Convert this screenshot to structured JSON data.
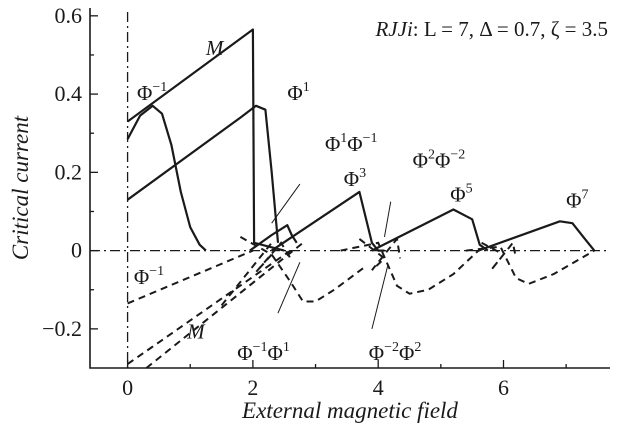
{
  "chart_data": {
    "type": "line",
    "title": {
      "prefix": "RJJi",
      "params": ": L = 7, Δ = 0.7, ζ = 3.5"
    },
    "xlabel": "External magnetic field",
    "ylabel": "Critical current",
    "xlim": [
      -0.6,
      7.7
    ],
    "ylim": [
      -0.3,
      0.62
    ],
    "xticks": [
      0,
      2,
      4,
      6
    ],
    "yticks": [
      -0.2,
      0,
      0.2,
      0.4,
      0.6
    ],
    "xtick_labels": [
      "0",
      "2",
      "4",
      "6"
    ],
    "ytick_labels": [
      "−0.2",
      "0",
      "0.2",
      "0.4",
      "0.6"
    ],
    "grid": false,
    "reference_lines": {
      "y": 0,
      "x": 0
    },
    "series": [
      {
        "style": "solid",
        "x": [
          0,
          2.0,
          2.02,
          2.5
        ],
        "y": [
          0.33,
          0.565,
          0.02,
          0.0
        ]
      },
      {
        "style": "solid",
        "x": [
          0,
          0.2,
          0.4,
          0.55,
          0.7,
          0.85,
          1.0,
          1.15,
          1.25
        ],
        "y": [
          0.285,
          0.345,
          0.37,
          0.35,
          0.27,
          0.15,
          0.06,
          0.015,
          0.0
        ]
      },
      {
        "style": "solid",
        "x": [
          0,
          1.8,
          2.05,
          2.2,
          2.3,
          2.4
        ],
        "y": [
          0.13,
          0.34,
          0.37,
          0.36,
          0.2,
          0.02
        ]
      },
      {
        "style": "solid",
        "x": [
          1.95,
          2.3,
          2.55,
          2.62,
          2.7
        ],
        "y": [
          0.0,
          0.04,
          0.065,
          0.04,
          0.02
        ]
      },
      {
        "style": "solid",
        "x": [
          2.3,
          3.7,
          3.9,
          4.0,
          4.1
        ],
        "y": [
          0.0,
          0.15,
          0.02,
          0.0,
          0.0
        ]
      },
      {
        "style": "solid",
        "x": [
          3.9,
          5.2,
          5.5,
          5.62,
          5.75
        ],
        "y": [
          0.0,
          0.105,
          0.08,
          0.015,
          0.0
        ]
      },
      {
        "style": "solid",
        "x": [
          5.6,
          6.9,
          7.1,
          7.3,
          7.45
        ],
        "y": [
          0.0,
          0.075,
          0.07,
          0.03,
          0.0
        ]
      },
      {
        "style": "dashed",
        "x": [
          0,
          2.0
        ],
        "y": [
          -0.135,
          0.0
        ]
      },
      {
        "style": "dashed",
        "x": [
          1.5,
          2.3
        ],
        "y": [
          -0.14,
          0.02
        ]
      },
      {
        "style": "dashed",
        "x": [
          0,
          2.6
        ],
        "y": [
          -0.29,
          0.0
        ]
      },
      {
        "style": "dashed",
        "x": [
          0.3,
          2.8
        ],
        "y": [
          -0.3,
          0.02
        ]
      },
      {
        "style": "dashed",
        "x": [
          2.3,
          2.6,
          2.8,
          3.0,
          3.3,
          3.8
        ],
        "y": [
          -0.01,
          -0.08,
          -0.13,
          -0.13,
          -0.1,
          -0.04
        ]
      },
      {
        "style": "dashed",
        "x": [
          3.4,
          4.0,
          4.3,
          4.5,
          4.8,
          5.2,
          5.6
        ],
        "y": [
          0.0,
          0.02,
          -0.09,
          -0.11,
          -0.1,
          -0.06,
          0.0
        ]
      },
      {
        "style": "dashed",
        "x": [
          5.4,
          5.95,
          6.2,
          6.4,
          6.8,
          7.45
        ],
        "y": [
          0.0,
          0.01,
          -0.07,
          -0.085,
          -0.06,
          0.0
        ]
      },
      {
        "style": "dashed",
        "x": [
          1.8,
          2.3,
          2.05,
          2.45,
          2.6
        ],
        "y": [
          0.035,
          -0.01,
          -0.055,
          0.02,
          -0.02
        ]
      },
      {
        "style": "dashed",
        "x": [
          3.7,
          4.1,
          3.9,
          4.3,
          4.35
        ],
        "y": [
          0.03,
          -0.02,
          -0.05,
          0.03,
          -0.02
        ]
      },
      {
        "style": "dashed",
        "x": [
          5.65,
          6.0,
          5.8,
          6.15,
          6.2
        ],
        "y": [
          0.02,
          -0.01,
          -0.05,
          0.02,
          -0.02
        ]
      }
    ],
    "annotations": [
      {
        "base": "M",
        "sup": "",
        "x": 1.25,
        "y": 0.5,
        "italic": true
      },
      {
        "base": "Φ",
        "sup": "−1",
        "x": 0.15,
        "y": 0.385,
        "italic": false
      },
      {
        "base": "Φ",
        "sup": "1",
        "x": 2.55,
        "y": 0.385,
        "italic": false
      },
      {
        "base": "Φ",
        "sup": "1",
        "sup2": "−1",
        "x": 3.15,
        "y": 0.255,
        "italic": false
      },
      {
        "base": "Φ",
        "sup": "3",
        "x": 3.45,
        "y": 0.165,
        "italic": false
      },
      {
        "base": "Φ",
        "sup": "2",
        "sup2": "−2",
        "x": 4.55,
        "y": 0.213,
        "italic": false
      },
      {
        "base": "Φ",
        "sup": "5",
        "x": 5.15,
        "y": 0.125,
        "italic": false
      },
      {
        "base": "Φ",
        "sup": "7",
        "x": 7.0,
        "y": 0.11,
        "italic": false
      },
      {
        "base": "Φ",
        "sup": "−1",
        "x": 0.1,
        "y": -0.085,
        "italic": false
      },
      {
        "base": "M",
        "sup": "",
        "x": 0.95,
        "y": -0.225,
        "italic": true
      },
      {
        "base": "Φ",
        "sup": "−1",
        "sup2": "1",
        "x": 1.75,
        "y": -0.28,
        "italic": false
      },
      {
        "base": "Φ",
        "sup": "−2",
        "sup2": "2",
        "x": 3.85,
        "y": -0.28,
        "italic": false
      }
    ],
    "leaders": [
      {
        "from": [
          2.75,
          0.17
        ],
        "to": [
          2.3,
          0.07
        ]
      },
      {
        "from": [
          4.2,
          0.125
        ],
        "to": [
          4.1,
          0.035
        ]
      },
      {
        "from": [
          2.4,
          -0.16
        ],
        "to": [
          2.75,
          -0.03
        ]
      },
      {
        "from": [
          3.9,
          -0.2
        ],
        "to": [
          4.15,
          -0.04
        ]
      }
    ]
  }
}
